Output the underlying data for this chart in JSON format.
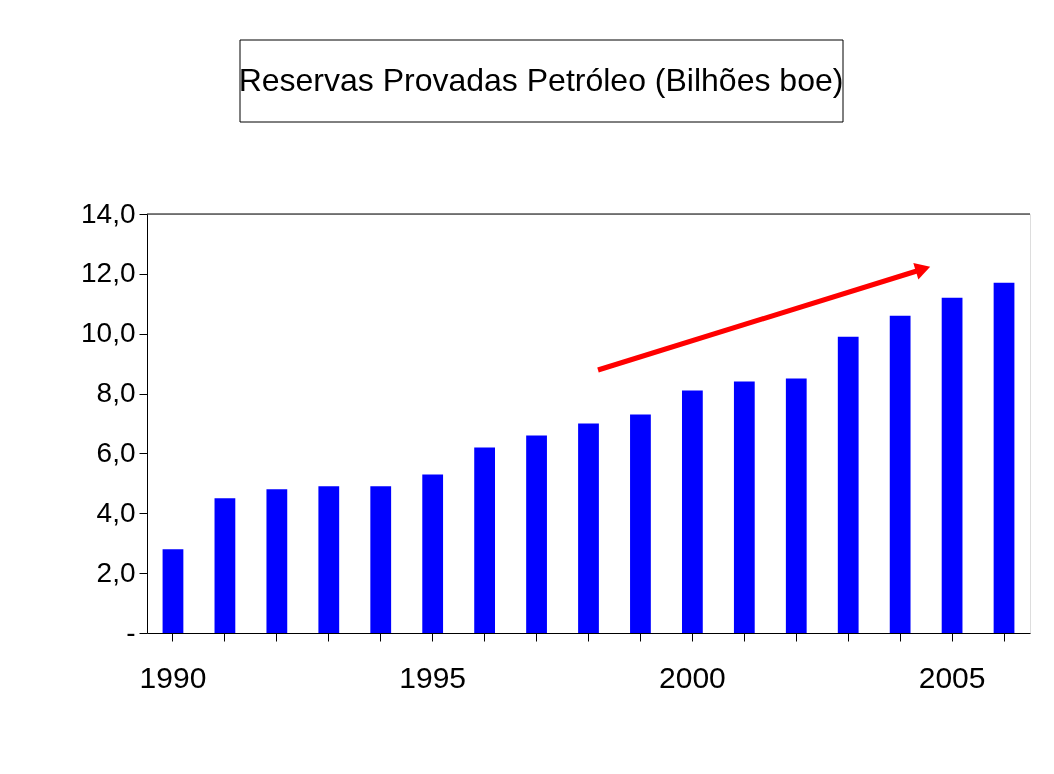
{
  "chart_data": {
    "type": "bar",
    "title": "Reservas Provadas Petróleo (Bilhões boe)",
    "categories": [
      "1990",
      null,
      null,
      null,
      null,
      "1995",
      null,
      null,
      null,
      null,
      "2000",
      null,
      null,
      null,
      null,
      "2005",
      null
    ],
    "values": [
      2.8,
      4.5,
      4.8,
      4.9,
      4.9,
      5.3,
      6.2,
      6.6,
      7.0,
      7.3,
      8.1,
      8.4,
      8.5,
      9.9,
      10.6,
      11.2,
      11.7
    ],
    "color": "#0000ff",
    "ylim": [
      0,
      14
    ],
    "yticks": [
      {
        "value": 0,
        "label": "-"
      },
      {
        "value": 2,
        "label": "2,0"
      },
      {
        "value": 4,
        "label": "4,0"
      },
      {
        "value": 6,
        "label": "6,0"
      },
      {
        "value": 8,
        "label": "8,0"
      },
      {
        "value": 10,
        "label": "10,0"
      },
      {
        "value": 12,
        "label": "12,0"
      },
      {
        "value": 14,
        "label": "14,0"
      }
    ],
    "grid": false
  }
}
